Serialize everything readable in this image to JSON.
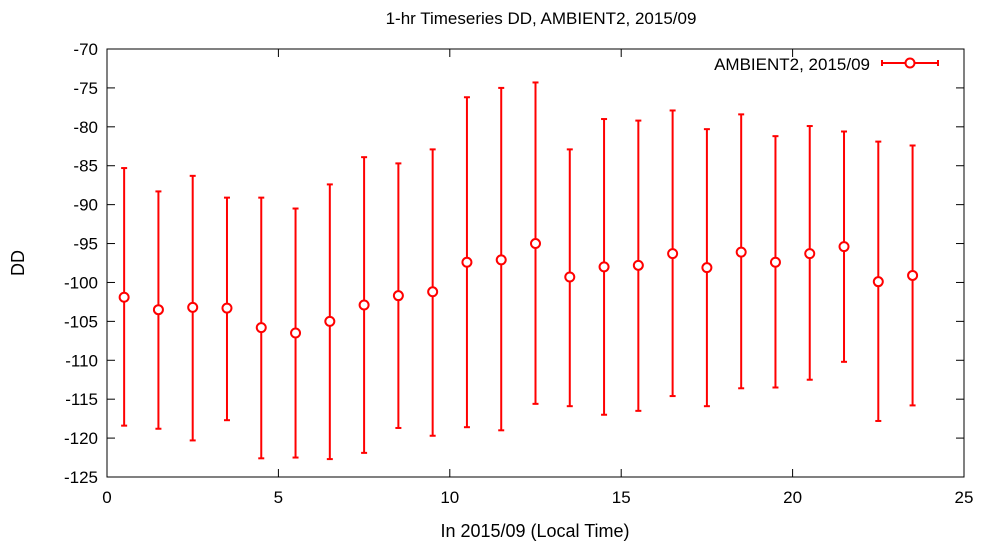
{
  "chart_data": {
    "type": "scatter",
    "title": "1-hr Timeseries DD, AMBIENT2, 2015/09",
    "xlabel": "In 2015/09 (Local Time)",
    "ylabel": "DD",
    "xlim": [
      0,
      25
    ],
    "ylim": [
      -125,
      -70
    ],
    "x_ticks": [
      0,
      5,
      10,
      15,
      20,
      25
    ],
    "y_ticks": [
      -70,
      -75,
      -80,
      -85,
      -90,
      -95,
      -100,
      -105,
      -110,
      -115,
      -120,
      -125
    ],
    "grid": false,
    "legend_position": "top-right",
    "series": [
      {
        "name": "AMBIENT2, 2015/09",
        "color": "#ff0000",
        "marker": "open-circle",
        "error_bars": true,
        "x": [
          0.5,
          1.5,
          2.5,
          3.5,
          4.5,
          5.5,
          6.5,
          7.5,
          8.5,
          9.5,
          10.5,
          11.5,
          12.5,
          13.5,
          14.5,
          15.5,
          16.5,
          17.5,
          18.5,
          19.5,
          20.5,
          21.5,
          22.5,
          23.5
        ],
        "y": [
          -101.9,
          -103.5,
          -103.2,
          -103.3,
          -105.8,
          -106.5,
          -105.0,
          -102.9,
          -101.7,
          -101.2,
          -97.4,
          -97.1,
          -95.0,
          -99.3,
          -98.0,
          -97.8,
          -96.3,
          -98.1,
          -96.1,
          -97.4,
          -96.3,
          -95.4,
          -99.9,
          -99.1
        ],
        "y_low": [
          -118.4,
          -118.8,
          -120.3,
          -117.7,
          -122.6,
          -122.5,
          -122.7,
          -121.9,
          -118.7,
          -119.7,
          -118.6,
          -119.0,
          -115.6,
          -115.9,
          -117.0,
          -116.5,
          -114.6,
          -115.9,
          -113.6,
          -113.5,
          -112.5,
          -110.2,
          -117.8,
          -115.8
        ],
        "y_high": [
          -85.3,
          -88.3,
          -86.3,
          -89.1,
          -89.1,
          -90.5,
          -87.4,
          -83.9,
          -84.7,
          -82.9,
          -76.2,
          -75.0,
          -74.3,
          -82.9,
          -79.0,
          -79.2,
          -77.9,
          -80.3,
          -78.4,
          -81.2,
          -79.9,
          -80.6,
          -81.9,
          -82.4
        ]
      }
    ]
  }
}
